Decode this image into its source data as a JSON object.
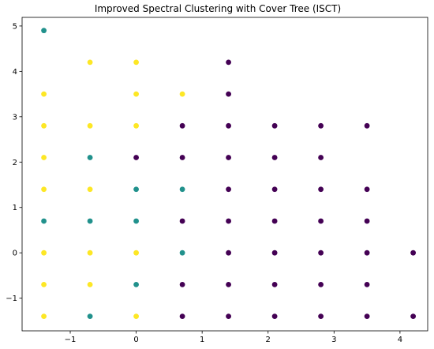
{
  "chart_data": {
    "type": "scatter",
    "title": "Improved Spectral Clustering with Cover Tree (ISCT)",
    "xlabel": "",
    "ylabel": "",
    "xlim": [
      -1.73,
      4.42
    ],
    "ylim": [
      -1.72,
      5.19
    ],
    "xticks": [
      -1,
      0,
      1,
      2,
      3,
      4
    ],
    "yticks": [
      -1,
      0,
      1,
      2,
      3,
      4,
      5
    ],
    "xtick_labels": [
      "−1",
      "0",
      "1",
      "2",
      "3",
      "4"
    ],
    "ytick_labels": [
      "−1",
      "0",
      "1",
      "2",
      "3",
      "4",
      "5"
    ],
    "grid": false,
    "legend": "none",
    "colors": {
      "cluster_0": "#440154",
      "cluster_1": "#21918c",
      "cluster_2": "#fde725"
    },
    "series": [
      {
        "cluster": "cluster_0",
        "points": [
          [
            1.4,
            4.2
          ],
          [
            1.4,
            3.5
          ],
          [
            0.7,
            2.8
          ],
          [
            1.4,
            2.8
          ],
          [
            2.1,
            2.8
          ],
          [
            2.8,
            2.8
          ],
          [
            3.5,
            2.8
          ],
          [
            0.0,
            2.1
          ],
          [
            0.7,
            2.1
          ],
          [
            1.4,
            2.1
          ],
          [
            2.1,
            2.1
          ],
          [
            2.8,
            2.1
          ],
          [
            1.4,
            1.4
          ],
          [
            2.1,
            1.4
          ],
          [
            2.8,
            1.4
          ],
          [
            3.5,
            1.4
          ],
          [
            0.7,
            0.7
          ],
          [
            1.4,
            0.7
          ],
          [
            2.1,
            0.7
          ],
          [
            2.8,
            0.7
          ],
          [
            3.5,
            0.7
          ],
          [
            1.4,
            0.0
          ],
          [
            2.1,
            0.0
          ],
          [
            2.8,
            0.0
          ],
          [
            3.5,
            0.0
          ],
          [
            4.2,
            0.0
          ],
          [
            0.7,
            -0.7
          ],
          [
            1.4,
            -0.7
          ],
          [
            2.1,
            -0.7
          ],
          [
            2.8,
            -0.7
          ],
          [
            3.5,
            -0.7
          ],
          [
            0.7,
            -1.4
          ],
          [
            1.4,
            -1.4
          ],
          [
            2.1,
            -1.4
          ],
          [
            2.8,
            -1.4
          ],
          [
            3.5,
            -1.4
          ],
          [
            4.2,
            -1.4
          ]
        ]
      },
      {
        "cluster": "cluster_1",
        "points": [
          [
            -1.4,
            4.9
          ],
          [
            -0.7,
            2.1
          ],
          [
            0.0,
            1.4
          ],
          [
            0.7,
            1.4
          ],
          [
            -1.4,
            0.7
          ],
          [
            -0.7,
            0.7
          ],
          [
            0.0,
            0.7
          ],
          [
            0.7,
            0.0
          ],
          [
            0.0,
            -0.7
          ],
          [
            -0.7,
            -1.4
          ]
        ]
      },
      {
        "cluster": "cluster_2",
        "points": [
          [
            -0.7,
            4.2
          ],
          [
            0.0,
            4.2
          ],
          [
            -1.4,
            3.5
          ],
          [
            0.0,
            3.5
          ],
          [
            0.7,
            3.5
          ],
          [
            -1.4,
            2.8
          ],
          [
            -0.7,
            2.8
          ],
          [
            0.0,
            2.8
          ],
          [
            -1.4,
            2.1
          ],
          [
            -1.4,
            1.4
          ],
          [
            -0.7,
            1.4
          ],
          [
            -1.4,
            0.0
          ],
          [
            -0.7,
            0.0
          ],
          [
            0.0,
            0.0
          ],
          [
            -1.4,
            -0.7
          ],
          [
            -0.7,
            -0.7
          ],
          [
            -1.4,
            -1.4
          ],
          [
            0.0,
            -1.4
          ]
        ]
      }
    ]
  }
}
